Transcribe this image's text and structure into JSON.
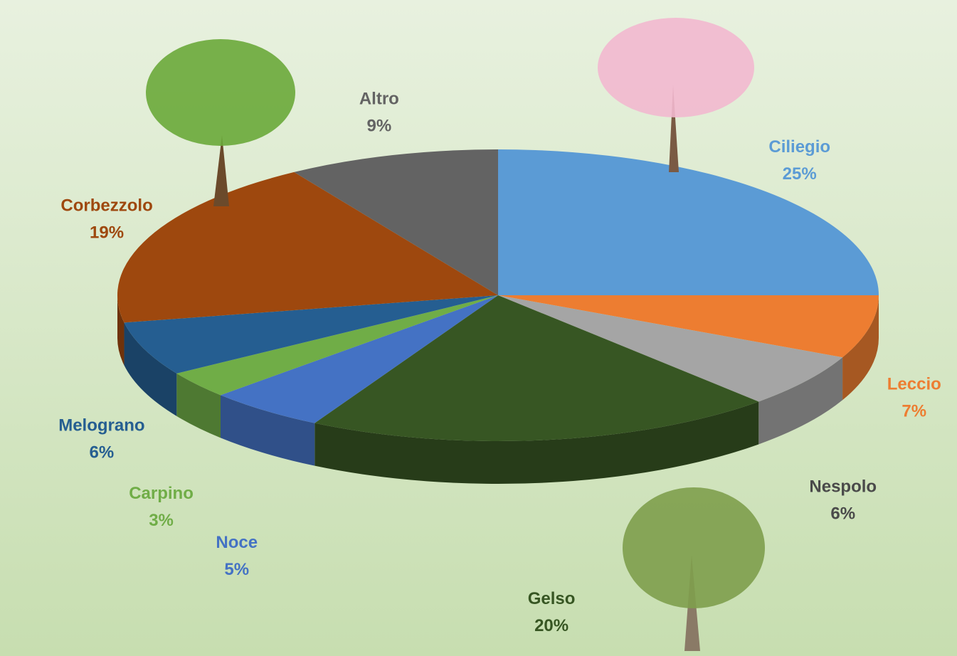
{
  "chart_data": {
    "type": "pie3d",
    "categories": [
      "Ciliegio",
      "Leccio",
      "Nespolo",
      "Gelso",
      "Noce",
      "Carpino",
      "Melograno",
      "Corbezzolo",
      "Altro"
    ],
    "values": [
      25,
      7,
      6,
      20,
      5,
      3,
      6,
      19,
      9
    ],
    "value_labels": [
      "25%",
      "7%",
      "6%",
      "20%",
      "5%",
      "3%",
      "6%",
      "19%",
      "9%"
    ],
    "colors": [
      "#5b9bd5",
      "#ed7d31",
      "#a5a5a5",
      "#375623",
      "#4472c4",
      "#70ad47",
      "#255e91",
      "#9e480e",
      "#636363"
    ]
  }
}
